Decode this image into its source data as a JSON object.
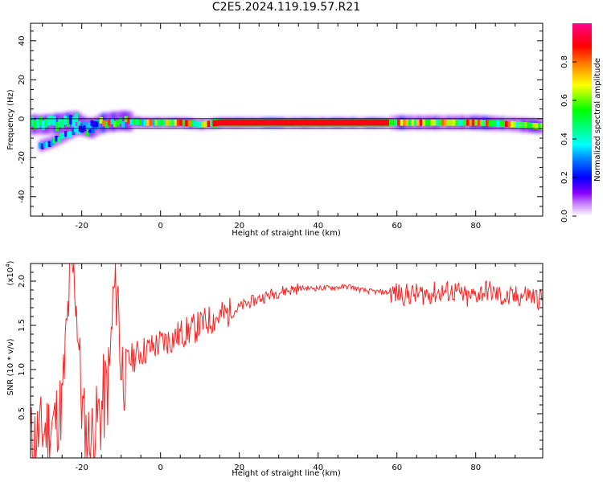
{
  "title": "C2E5.2024.119.19.57.R21",
  "chart_data": [
    {
      "type": "heatmap",
      "xlabel": "Height of straight line (km)",
      "ylabel": "Frequency (Hz)",
      "xlim": [
        -33,
        97
      ],
      "ylim": [
        -50,
        49
      ],
      "xticks": [
        -20,
        0,
        20,
        40,
        60,
        80
      ],
      "yticks": [
        -40,
        -20,
        0,
        20,
        40
      ],
      "colorbar": {
        "label": "Normalized spectral amplitude",
        "range": [
          0,
          1
        ],
        "ticks": [
          "0.0",
          "0.2",
          "0.4",
          "0.6",
          "0.8"
        ],
        "colors": [
          "#ffffff",
          "#cc88ff",
          "#8800ff",
          "#0000ff",
          "#0088ff",
          "#00ffff",
          "#00ff88",
          "#00ff00",
          "#88ff00",
          "#ffff00",
          "#ff8800",
          "#ff0000",
          "#ff0088"
        ]
      },
      "ridge": {
        "x": [
          -33,
          -30,
          -25,
          -22,
          -20,
          -18,
          -15,
          -10,
          -5,
          0,
          5,
          10,
          15,
          20,
          30,
          40,
          50,
          60,
          70,
          80,
          90,
          96
        ],
        "y": [
          -3,
          -3,
          -2,
          -1,
          -4,
          -5,
          -2,
          -1,
          -2,
          -2,
          -2,
          -3,
          -2,
          -2,
          -2,
          -2,
          -2,
          -2,
          -2,
          -2,
          -3,
          -4
        ]
      },
      "lower_branch": {
        "x": [
          -31,
          -28,
          -25,
          -22,
          -20,
          -18,
          -16
        ],
        "y": [
          -14,
          -12,
          -9,
          -6,
          -5,
          -3,
          -2
        ]
      },
      "horizontal_lines_hz": [
        0,
        -5
      ]
    },
    {
      "type": "line",
      "xlabel": "Height of straight line (km)",
      "ylabel": "SNR (10 * v/v)",
      "multiplier_label": "(x10",
      "multiplier_exp": "4",
      "xlim": [
        -33,
        97
      ],
      "ylim": [
        0,
        2.2
      ],
      "xticks": [
        -20,
        0,
        20,
        40,
        60,
        80
      ],
      "yticks": [
        "0.5",
        "1.0",
        "1.5",
        "2.0"
      ],
      "color": "#ff2222",
      "series": [
        {
          "x": [
            -33,
            -30,
            -27,
            -25,
            -24,
            -23,
            -22,
            -21,
            -20,
            -19,
            -18,
            -17,
            -15,
            -13,
            -12,
            -11,
            -10,
            -8,
            -5,
            -2,
            0,
            3,
            5,
            8,
            10,
            12,
            15,
            18,
            20,
            22,
            25,
            28,
            30,
            33,
            35,
            40,
            45,
            48,
            50,
            52,
            55,
            58,
            60,
            62,
            65,
            68,
            70,
            72,
            75,
            78,
            80,
            83,
            85,
            88,
            90,
            93,
            96
          ],
          "y": [
            0.2,
            0.3,
            0.4,
            0.6,
            1.3,
            2.0,
            2.15,
            1.5,
            0.6,
            0.3,
            0.2,
            0.3,
            0.55,
            0.9,
            1.8,
            2.0,
            1.0,
            1.1,
            1.2,
            1.25,
            1.3,
            1.35,
            1.4,
            1.45,
            1.5,
            1.55,
            1.6,
            1.65,
            1.7,
            1.75,
            1.8,
            1.85,
            1.88,
            1.9,
            1.92,
            1.92,
            1.93,
            1.94,
            1.91,
            1.89,
            1.88,
            1.87,
            1.86,
            1.85,
            1.85,
            1.86,
            1.87,
            1.88,
            1.88,
            1.8,
            1.85,
            1.9,
            1.85,
            1.8,
            1.82,
            1.85,
            1.8
          ]
        }
      ]
    }
  ]
}
